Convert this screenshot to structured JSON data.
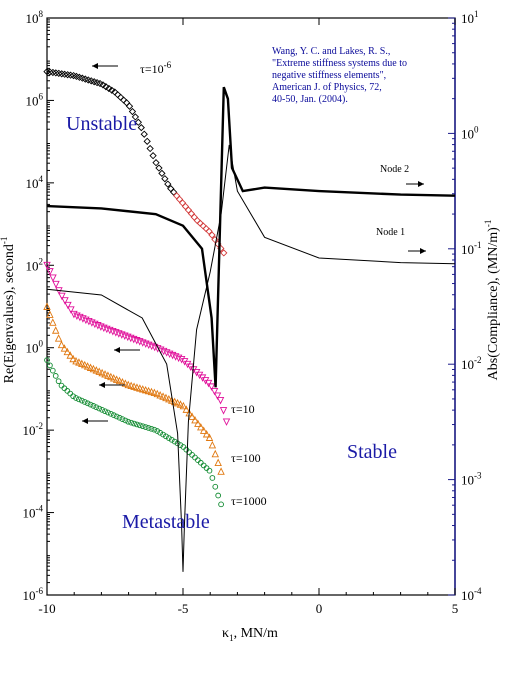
{
  "chart_data": {
    "type": "scatter",
    "xlabel": "κ1, MN/m",
    "ylabel_left": "Re(Eigenvalues), second-1",
    "ylabel_right": "Abs(Compliance), (MN/m)-1",
    "xlim": [
      -10,
      5
    ],
    "ylim_left_log10": [
      -6,
      8
    ],
    "ylim_right_log10": [
      -4,
      1
    ],
    "x_ticks": [
      "-10",
      "-5",
      "0",
      "5"
    ],
    "y_left_ticks": [
      {
        "base": "10",
        "exp": "8"
      },
      {
        "base": "10",
        "exp": "6"
      },
      {
        "base": "10",
        "exp": "4"
      },
      {
        "base": "10",
        "exp": "2"
      },
      {
        "base": "10",
        "exp": "0"
      },
      {
        "base": "10",
        "exp": "-2"
      },
      {
        "base": "10",
        "exp": "-4"
      },
      {
        "base": "10",
        "exp": "-6"
      }
    ],
    "y_right_ticks": [
      {
        "base": "10",
        "exp": "1"
      },
      {
        "base": "10",
        "exp": "0"
      },
      {
        "base": "10",
        "exp": "-1"
      },
      {
        "base": "10",
        "exp": "-2"
      },
      {
        "base": "10",
        "exp": "-3"
      },
      {
        "base": "10",
        "exp": "-4"
      }
    ],
    "regions": [
      "Unstable",
      "Stable",
      "Metastable"
    ],
    "citation": [
      "Wang, Y. C. and Lakes, R. S.,",
      "\"Extreme stiffness systems due to",
      "negative stiffness elements\",",
      "American J. of Physics, 72,",
      "40-50, Jan. (2004)."
    ],
    "node_labels": [
      "Node 2",
      "Node 1"
    ],
    "series": [
      {
        "name": "τ=10-6",
        "marker": "diamond",
        "color": "#000000",
        "axis": "left",
        "x_range": [
          -10,
          -3.5
        ],
        "log10_y": [
          [
            -10,
            6.7
          ],
          [
            -9,
            6.6
          ],
          [
            -8,
            6.4
          ],
          [
            -7.5,
            6.2
          ],
          [
            -7,
            5.9
          ],
          [
            -6.5,
            5.3
          ],
          [
            -6,
            4.5
          ],
          [
            -5.5,
            3.9
          ],
          [
            -5,
            3.5
          ],
          [
            -4.5,
            3.1
          ],
          [
            -4,
            2.8
          ],
          [
            -3.5,
            2.3
          ]
        ]
      },
      {
        "name": "τ=10",
        "marker": "triangle-down",
        "color": "#e0109a",
        "axis": "left",
        "x_range": [
          -10,
          -3.4
        ],
        "log10_y": [
          [
            -10,
            2.0
          ],
          [
            -9.5,
            1.3
          ],
          [
            -9,
            0.8
          ],
          [
            -8,
            0.5
          ],
          [
            -7,
            0.25
          ],
          [
            -6,
            0.0
          ],
          [
            -5,
            -0.3
          ],
          [
            -4.5,
            -0.6
          ],
          [
            -4,
            -0.9
          ],
          [
            -3.6,
            -1.3
          ],
          [
            -3.4,
            -1.8
          ]
        ]
      },
      {
        "name": "τ=100",
        "marker": "triangle-up",
        "color": "#e07810",
        "axis": "left",
        "x_range": [
          -10,
          -3.6
        ],
        "log10_y": [
          [
            -10,
            1.0
          ],
          [
            -9.5,
            0.1
          ],
          [
            -9,
            -0.3
          ],
          [
            -8,
            -0.6
          ],
          [
            -7,
            -0.9
          ],
          [
            -6,
            -1.1
          ],
          [
            -5,
            -1.4
          ],
          [
            -4.5,
            -1.8
          ],
          [
            -4,
            -2.2
          ],
          [
            -3.6,
            -3.0
          ]
        ]
      },
      {
        "name": "τ=1000",
        "marker": "circle",
        "color": "#108a30",
        "axis": "left",
        "x_range": [
          -10,
          -3.6
        ],
        "log10_y": [
          [
            -10,
            -0.3
          ],
          [
            -9.5,
            -0.9
          ],
          [
            -9,
            -1.2
          ],
          [
            -8,
            -1.5
          ],
          [
            -7,
            -1.8
          ],
          [
            -6,
            -2.0
          ],
          [
            -5,
            -2.4
          ],
          [
            -4.5,
            -2.7
          ],
          [
            -4,
            -3.0
          ],
          [
            -3.6,
            -3.8
          ]
        ]
      },
      {
        "name": "Node 2",
        "style": "thick-line",
        "color": "#000000",
        "axis": "right",
        "log10_y": [
          [
            -10,
            -0.63
          ],
          [
            -8,
            -0.65
          ],
          [
            -6,
            -0.7
          ],
          [
            -5,
            -0.8
          ],
          [
            -4.3,
            -1.0
          ],
          [
            -3.95,
            -1.6
          ],
          [
            -3.8,
            -2.2
          ],
          [
            -3.65,
            -0.9
          ],
          [
            -3.5,
            0.4
          ],
          [
            -3.35,
            0.3
          ],
          [
            -3.2,
            -0.3
          ],
          [
            -2.8,
            -0.5
          ],
          [
            -2,
            -0.47
          ],
          [
            0,
            -0.5
          ],
          [
            3,
            -0.53
          ],
          [
            5,
            -0.54
          ]
        ]
      },
      {
        "name": "Node 1",
        "style": "thin-line",
        "color": "#000000",
        "axis": "right",
        "log10_y": [
          [
            -10,
            -1.35
          ],
          [
            -8,
            -1.4
          ],
          [
            -6.5,
            -1.6
          ],
          [
            -5.6,
            -2.0
          ],
          [
            -5.2,
            -2.6
          ],
          [
            -5.05,
            -3.4
          ],
          [
            -5.0,
            -3.8
          ],
          [
            -4.95,
            -3.4
          ],
          [
            -4.8,
            -2.5
          ],
          [
            -4.5,
            -1.7
          ],
          [
            -4.0,
            -1.2
          ],
          [
            -3.6,
            -0.7
          ],
          [
            -3.3,
            -0.1
          ],
          [
            -3.0,
            -0.5
          ],
          [
            -2.0,
            -0.9
          ],
          [
            0,
            -1.08
          ],
          [
            3,
            -1.12
          ],
          [
            5,
            -1.13
          ]
        ]
      }
    ]
  }
}
